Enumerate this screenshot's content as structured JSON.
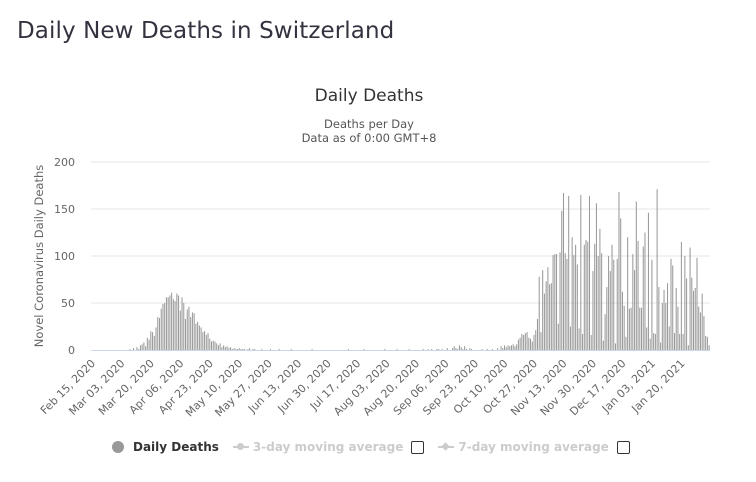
{
  "page": {
    "title": "Daily New Deaths in Switzerland"
  },
  "chart_data": {
    "type": "bar",
    "title": "Daily Deaths",
    "subtitle_line1": "Deaths per Day",
    "subtitle_line2": "Data as of 0:00 GMT+8",
    "xlabel": "",
    "ylabel": "Novel Coronavirus Daily Deaths",
    "ylim": [
      0,
      200
    ],
    "yticks": [
      0,
      50,
      100,
      150,
      200
    ],
    "grid": true,
    "start_date": "2020-02-15",
    "xtick_labels": [
      "Feb 15, 2020",
      "Mar 03, 2020",
      "Mar 20, 2020",
      "Apr 06, 2020",
      "Apr 23, 2020",
      "May 10, 2020",
      "May 27, 2020",
      "Jun 13, 2020",
      "Jun 30, 2020",
      "Jul 17, 2020",
      "Aug 03, 2020",
      "Aug 20, 2020",
      "Sep 06, 2020",
      "Sep 23, 2020",
      "Oct 10, 2020",
      "Oct 27, 2020",
      "Nov 13, 2020",
      "Nov 30, 2020",
      "Dec 17, 2020",
      "Jan 03, 2021",
      "Jan 20, 2021"
    ],
    "xtick_interval_days": 17,
    "bar_color": "#999999",
    "series": [
      {
        "name": "Daily Deaths",
        "values": [
          0,
          0,
          0,
          0,
          0,
          0,
          0,
          0,
          0,
          0,
          0,
          0,
          0,
          0,
          0,
          0,
          0,
          0,
          0,
          0,
          0,
          0,
          1,
          0,
          2,
          0,
          3,
          1,
          5,
          6,
          8,
          4,
          13,
          11,
          20,
          19,
          15,
          24,
          35,
          34,
          44,
          49,
          50,
          56,
          56,
          58,
          61,
          54,
          52,
          60,
          58,
          42,
          56,
          50,
          33,
          43,
          46,
          35,
          40,
          39,
          28,
          30,
          26,
          24,
          19,
          20,
          16,
          18,
          12,
          9,
          10,
          9,
          7,
          5,
          7,
          3,
          5,
          3,
          4,
          2,
          3,
          1,
          2,
          1,
          1,
          2,
          1,
          1,
          1,
          0,
          1,
          2,
          0,
          1,
          1,
          0,
          0,
          0,
          1,
          0,
          0,
          0,
          0,
          1,
          0,
          0,
          0,
          0,
          1,
          0,
          0,
          0,
          0,
          0,
          0,
          1,
          0,
          0,
          0,
          0,
          0,
          0,
          0,
          0,
          0,
          0,
          0,
          1,
          0,
          0,
          0,
          0,
          0,
          0,
          0,
          0,
          0,
          0,
          0,
          0,
          0,
          0,
          0,
          0,
          0,
          0,
          0,
          0,
          1,
          0,
          0,
          0,
          0,
          0,
          0,
          0,
          0,
          1,
          0,
          0,
          0,
          0,
          0,
          0,
          0,
          0,
          0,
          0,
          0,
          1,
          0,
          0,
          0,
          0,
          0,
          0,
          1,
          0,
          0,
          0,
          0,
          0,
          0,
          1,
          0,
          0,
          0,
          0,
          0,
          0,
          0,
          1,
          0,
          0,
          1,
          0,
          1,
          0,
          0,
          1,
          1,
          0,
          1,
          0,
          0,
          2,
          0,
          0,
          2,
          4,
          2,
          1,
          5,
          3,
          1,
          4,
          1,
          0,
          2,
          1,
          0,
          0,
          0,
          0,
          0,
          1,
          0,
          0,
          1,
          0,
          0,
          1,
          0,
          0,
          2,
          0,
          4,
          2,
          5,
          3,
          5,
          4,
          5,
          6,
          4,
          6,
          11,
          13,
          17,
          16,
          18,
          19,
          13,
          12,
          9,
          16,
          21,
          33,
          78,
          19,
          85,
          60,
          73,
          88,
          70,
          71,
          101,
          102,
          102,
          28,
          104,
          148,
          167,
          103,
          97,
          164,
          25,
          120,
          101,
          112,
          91,
          23,
          165,
          17,
          112,
          117,
          115,
          164,
          16,
          84,
          113,
          156,
          100,
          129,
          103,
          10,
          38,
          67,
          100,
          84,
          112,
          96,
          7,
          97,
          168,
          140,
          62,
          47,
          14,
          120,
          44,
          45,
          102,
          85,
          158,
          116,
          45,
          45,
          110,
          125,
          24,
          146,
          12,
          96,
          18,
          17,
          171,
          67,
          8,
          50,
          64,
          50,
          71,
          25,
          97,
          90,
          18,
          66,
          46,
          17,
          115,
          17,
          100,
          76,
          5,
          109,
          77,
          63,
          66,
          98,
          46,
          40,
          60,
          36,
          15,
          14,
          5
        ]
      }
    ],
    "legend": {
      "placement": "bottom",
      "items": [
        {
          "label": "Daily Deaths",
          "enabled": true,
          "marker": "circle"
        },
        {
          "label": "3-day moving average",
          "enabled": false,
          "marker": "circle",
          "checked": false
        },
        {
          "label": "7-day moving average",
          "enabled": false,
          "marker": "diamond",
          "checked": false
        }
      ]
    }
  }
}
